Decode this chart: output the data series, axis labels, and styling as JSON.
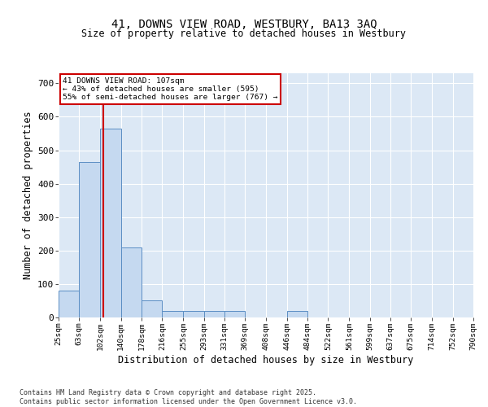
{
  "title1": "41, DOWNS VIEW ROAD, WESTBURY, BA13 3AQ",
  "title2": "Size of property relative to detached houses in Westbury",
  "xlabel": "Distribution of detached houses by size in Westbury",
  "ylabel": "Number of detached properties",
  "bin_edges": [
    25,
    63,
    102,
    140,
    178,
    216,
    255,
    293,
    331,
    369,
    408,
    446,
    484,
    522,
    561,
    599,
    637,
    675,
    714,
    752,
    790
  ],
  "bar_heights": [
    80,
    465,
    565,
    210,
    50,
    20,
    20,
    20,
    20,
    0,
    0,
    20,
    0,
    0,
    0,
    0,
    0,
    0,
    0,
    0
  ],
  "bar_color": "#c5d9f0",
  "bar_edge_color": "#5b8ec4",
  "tick_labels": [
    "25sqm",
    "63sqm",
    "102sqm",
    "140sqm",
    "178sqm",
    "216sqm",
    "255sqm",
    "293sqm",
    "331sqm",
    "369sqm",
    "408sqm",
    "446sqm",
    "484sqm",
    "522sqm",
    "561sqm",
    "599sqm",
    "637sqm",
    "675sqm",
    "714sqm",
    "752sqm",
    "790sqm"
  ],
  "property_size": 107,
  "vline_color": "#cc0000",
  "annotation_line1": "41 DOWNS VIEW ROAD: 107sqm",
  "annotation_line2": "← 43% of detached houses are smaller (595)",
  "annotation_line3": "55% of semi-detached houses are larger (767) →",
  "annotation_box_color": "#cc0000",
  "ylim": [
    0,
    730
  ],
  "yticks": [
    0,
    100,
    200,
    300,
    400,
    500,
    600,
    700
  ],
  "bg_color": "#dce8f5",
  "grid_color": "#ffffff",
  "footer1": "Contains HM Land Registry data © Crown copyright and database right 2025.",
  "footer2": "Contains public sector information licensed under the Open Government Licence v3.0."
}
